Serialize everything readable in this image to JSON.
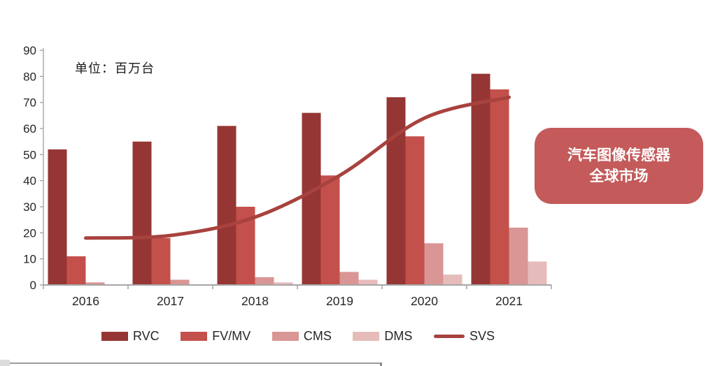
{
  "unit_label": "单位：百万台",
  "badge": {
    "line1": "汽车图像传感器",
    "line2": "全球市场",
    "bg_color": "#C45A5A",
    "text_color": "#FFFFFF"
  },
  "chart_data": {
    "type": "bar+line",
    "title": "",
    "xlabel": "",
    "ylabel": "",
    "unit_note": "单位：百万台",
    "categories": [
      "2016",
      "2017",
      "2018",
      "2019",
      "2020",
      "2021"
    ],
    "series": [
      {
        "name": "RVC",
        "type": "bar",
        "color": "#963634",
        "values": [
          52,
          55,
          61,
          66,
          72,
          81
        ]
      },
      {
        "name": "FV/MV",
        "type": "bar",
        "color": "#C4504C",
        "values": [
          11,
          18,
          30,
          42,
          57,
          75
        ]
      },
      {
        "name": "CMS",
        "type": "bar",
        "color": "#D99694",
        "values": [
          1,
          2,
          3,
          5,
          16,
          22
        ]
      },
      {
        "name": "DMS",
        "type": "bar",
        "color": "#E6BCBB",
        "values": [
          0,
          0,
          1,
          2,
          4,
          9
        ]
      },
      {
        "name": "SVS",
        "type": "line",
        "color": "#A8423E",
        "values": [
          18,
          19,
          26,
          42,
          64,
          72
        ]
      }
    ],
    "ylim": [
      0,
      90
    ],
    "ytick_step": 10,
    "grid": false,
    "legend_position": "bottom",
    "axis_color": "#A6A6A6",
    "label_color": "#262626"
  }
}
